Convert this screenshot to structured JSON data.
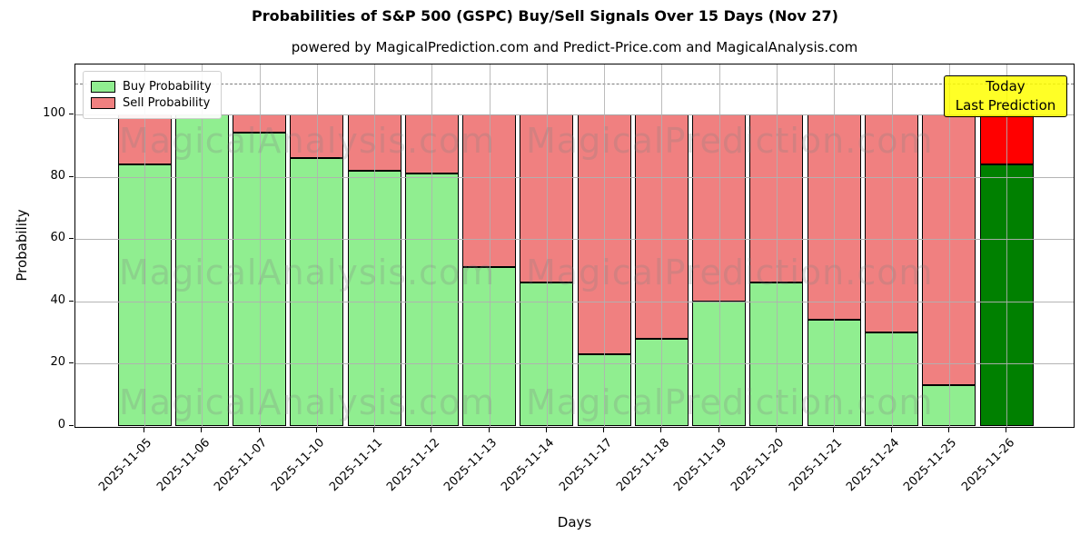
{
  "figure": {
    "title": "Probabilities of S&P 500 (GSPC) Buy/Sell Signals Over 15 Days (Nov 27)",
    "subtitle": "powered by MagicalPrediction.com and Predict-Price.com and MagicalAnalysis.com"
  },
  "legend": {
    "items": [
      {
        "label": "Buy Probability",
        "color": "#90EE90"
      },
      {
        "label": "Sell Probability",
        "color": "#F08080"
      }
    ]
  },
  "annotation": {
    "line1": "Today",
    "line2": "Last Prediction",
    "bg_color": "#FFFF00"
  },
  "watermarks": {
    "left": "MagicalAnalysis.com",
    "right": "MagicalPrediction.com"
  },
  "colors": {
    "buy": "#90EE90",
    "sell": "#F08080",
    "last_buy": "#008000",
    "last_sell": "#FF0000",
    "grid": "#b0b0b0",
    "edge": "#000000"
  },
  "chart_data": {
    "type": "bar",
    "stacked": true,
    "title": "Probabilities of S&P 500 (GSPC) Buy/Sell Signals Over 15 Days (Nov 27)",
    "xlabel": "Days",
    "ylabel": "Probability",
    "ylim": [
      0,
      116
    ],
    "yticks": [
      0,
      20,
      40,
      60,
      80,
      100
    ],
    "threshold_dashed_y": 110,
    "grid": true,
    "legend_position": "upper left",
    "categories": [
      "2025-11-05",
      "2025-11-06",
      "2025-11-07",
      "2025-11-10",
      "2025-11-11",
      "2025-11-12",
      "2025-11-13",
      "2025-11-14",
      "2025-11-17",
      "2025-11-18",
      "2025-11-19",
      "2025-11-20",
      "2025-11-21",
      "2025-11-24",
      "2025-11-25",
      "2025-11-26"
    ],
    "series": [
      {
        "name": "Buy Probability",
        "color": "#90EE90",
        "values": [
          84,
          100,
          94,
          86,
          82,
          81,
          51,
          46,
          23,
          28,
          40,
          46,
          34,
          30,
          13,
          84
        ]
      },
      {
        "name": "Sell Probability",
        "color": "#F08080",
        "values": [
          16,
          0,
          6,
          14,
          18,
          19,
          49,
          54,
          77,
          72,
          60,
          54,
          66,
          70,
          87,
          16
        ]
      }
    ],
    "last_bar": {
      "index": 15,
      "buy_color": "#008000",
      "sell_color": "#FF0000"
    }
  }
}
